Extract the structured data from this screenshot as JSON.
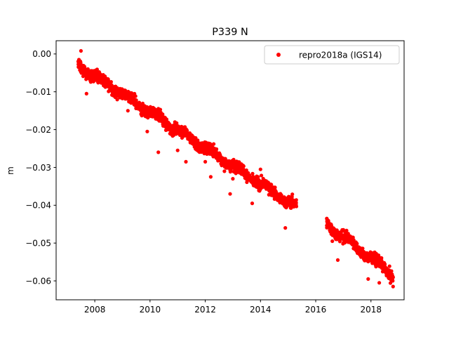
{
  "chart_data": {
    "type": "scatter",
    "title": "P339 N",
    "xlabel": "",
    "ylabel": "m",
    "xlim": [
      2006.6,
      2019.2
    ],
    "ylim": [
      -0.065,
      0.0035
    ],
    "x_ticks": [
      2008,
      2010,
      2012,
      2014,
      2016,
      2018
    ],
    "x_tick_labels": [
      "2008",
      "2010",
      "2012",
      "2014",
      "2016",
      "2018"
    ],
    "y_ticks": [
      0.0,
      -0.01,
      -0.02,
      -0.03,
      -0.04,
      -0.05,
      -0.06
    ],
    "y_tick_labels": [
      "0.00",
      "−0.01",
      "−0.02",
      "−0.03",
      "−0.04",
      "−0.05",
      "−0.06"
    ],
    "grid": false,
    "legend_position": "top-right",
    "series": [
      {
        "name": "repro2018a (IGS14)",
        "color": "#ff0000",
        "marker": "circle",
        "segments": [
          {
            "start": 2007.4,
            "end": 2015.3,
            "y_start": -0.003,
            "y_end": -0.0405,
            "scatter": 0.0018
          },
          {
            "start": 2016.4,
            "end": 2018.8,
            "y_start": -0.045,
            "y_end": -0.0585,
            "scatter": 0.0018
          }
        ],
        "outliers": [
          [
            2007.5,
            0.0008
          ],
          [
            2007.7,
            -0.0105
          ],
          [
            2009.2,
            -0.015
          ],
          [
            2009.4,
            -0.0125
          ],
          [
            2009.9,
            -0.0205
          ],
          [
            2010.3,
            -0.026
          ],
          [
            2010.9,
            -0.018
          ],
          [
            2011.0,
            -0.0255
          ],
          [
            2011.3,
            -0.0285
          ],
          [
            2011.7,
            -0.0235
          ],
          [
            2012.2,
            -0.0325
          ],
          [
            2012.9,
            -0.037
          ],
          [
            2013.0,
            -0.033
          ],
          [
            2013.7,
            -0.0395
          ],
          [
            2014.0,
            -0.0305
          ],
          [
            2014.9,
            -0.046
          ],
          [
            2016.4,
            -0.0435
          ],
          [
            2016.8,
            -0.0545
          ],
          [
            2017.0,
            -0.0465
          ],
          [
            2017.9,
            -0.0595
          ],
          [
            2018.3,
            -0.0605
          ],
          [
            2018.8,
            -0.0615
          ],
          [
            2016.6,
            -0.0495
          ],
          [
            2012.0,
            -0.0285
          ]
        ]
      }
    ]
  }
}
